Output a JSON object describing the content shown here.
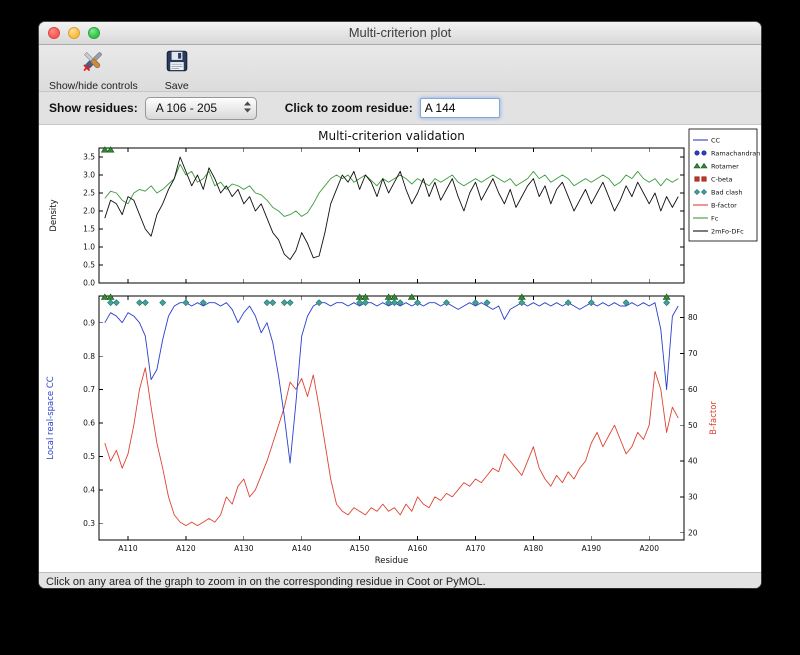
{
  "window": {
    "title": "Multi-criterion plot"
  },
  "toolbar": {
    "show_hide_label": "Show/hide controls",
    "save_label": "Save"
  },
  "controls": {
    "show_residues_label": "Show residues:",
    "residue_range_value": "A 106 - 205",
    "zoom_residue_label": "Click to zoom residue:",
    "zoom_residue_value": "A 144"
  },
  "statusbar": {
    "text": "Click on any area of the graph to zoom in on the corresponding residue in Coot or PyMOL."
  },
  "chart_data": {
    "type": "line",
    "title": "Multi-criterion validation",
    "xlabel": "Residue",
    "x_start": 106,
    "xlim": [
      105,
      206
    ],
    "x_tick_values": [
      110,
      120,
      130,
      140,
      150,
      160,
      170,
      180,
      190,
      200
    ],
    "x_tick_labels": [
      "A110",
      "A120",
      "A130",
      "A140",
      "A150",
      "A160",
      "A170",
      "A180",
      "A190",
      "A200"
    ],
    "top_plot": {
      "ylabel": "Density",
      "ylim": [
        0,
        3.75
      ],
      "yticks": [
        0.0,
        0.5,
        1.0,
        1.5,
        2.0,
        2.5,
        3.0,
        3.5
      ],
      "marker_y": 3.7,
      "rotamer_marker_x": [
        106,
        107
      ],
      "series": [
        {
          "name": "Fc",
          "color": "#3c9b3c",
          "values": [
            2.35,
            2.55,
            2.5,
            2.3,
            2.2,
            2.5,
            2.6,
            2.55,
            2.7,
            2.5,
            2.6,
            2.75,
            2.9,
            3.3,
            3.0,
            3.1,
            2.8,
            2.9,
            3.1,
            2.7,
            2.8,
            2.6,
            2.75,
            2.7,
            2.6,
            2.7,
            2.5,
            2.45,
            2.3,
            2.1,
            2.0,
            1.85,
            1.9,
            2.0,
            1.85,
            1.95,
            2.2,
            2.5,
            2.7,
            2.9,
            3.0,
            2.9,
            3.0,
            2.8,
            2.9,
            3.0,
            2.85,
            2.7,
            2.9,
            2.8,
            2.9,
            3.0,
            2.9,
            2.75,
            2.9,
            2.8,
            2.7,
            2.9,
            2.8,
            2.9,
            3.0,
            2.8,
            2.7,
            2.8,
            2.9,
            2.8,
            2.9,
            3.0,
            2.9,
            2.8,
            2.9,
            2.7,
            2.8,
            2.9,
            3.1,
            2.9,
            3.0,
            2.8,
            2.9,
            3.0,
            2.9,
            2.7,
            2.8,
            2.9,
            2.8,
            2.9,
            3.0,
            2.9,
            2.7,
            2.8,
            3.0,
            2.9,
            3.1,
            2.9,
            2.8,
            2.9,
            2.7,
            2.9,
            2.8,
            2.9
          ]
        },
        {
          "name": "2mFo-DFc",
          "color": "#111111",
          "values": [
            1.8,
            2.3,
            2.2,
            1.9,
            2.4,
            2.3,
            1.9,
            1.5,
            1.3,
            1.9,
            2.2,
            2.6,
            2.9,
            3.5,
            3.1,
            2.7,
            3.0,
            2.6,
            3.2,
            2.9,
            2.5,
            2.7,
            2.4,
            2.6,
            2.2,
            2.4,
            2.0,
            2.2,
            1.8,
            1.4,
            1.2,
            0.8,
            0.65,
            0.9,
            1.4,
            1.1,
            0.7,
            0.75,
            1.4,
            2.2,
            2.6,
            3.0,
            2.8,
            3.1,
            2.6,
            3.0,
            2.8,
            2.4,
            2.9,
            2.5,
            2.8,
            3.1,
            2.6,
            2.2,
            2.5,
            2.9,
            2.4,
            2.8,
            2.3,
            2.6,
            2.9,
            2.4,
            2.0,
            2.5,
            2.8,
            2.3,
            2.6,
            2.9,
            2.5,
            2.2,
            2.6,
            2.1,
            2.4,
            2.7,
            2.9,
            2.4,
            2.7,
            2.2,
            2.6,
            2.8,
            2.4,
            2.0,
            2.3,
            2.6,
            2.2,
            2.5,
            2.8,
            2.4,
            2.0,
            2.3,
            2.7,
            2.4,
            2.8,
            2.5,
            2.2,
            2.5,
            2.0,
            2.4,
            2.1,
            2.4
          ]
        }
      ]
    },
    "bottom_plot": {
      "ylabel_left": "Local real-space CC",
      "ylabel_left_color": "#2b3fcc",
      "ylabel_right": "B-factor",
      "ylabel_right_color": "#dd4433",
      "ylim_left": [
        0.25,
        0.98
      ],
      "yticks_left": [
        0.3,
        0.4,
        0.5,
        0.6,
        0.7,
        0.8,
        0.9
      ],
      "ylim_right": [
        18,
        86
      ],
      "yticks_right": [
        20,
        30,
        40,
        50,
        60,
        70,
        80
      ],
      "cc": {
        "name": "CC",
        "color": "#2b3fcc",
        "values": [
          0.9,
          0.93,
          0.92,
          0.9,
          0.93,
          0.92,
          0.9,
          0.86,
          0.73,
          0.76,
          0.85,
          0.92,
          0.95,
          0.96,
          0.96,
          0.95,
          0.96,
          0.95,
          0.96,
          0.96,
          0.95,
          0.96,
          0.94,
          0.9,
          0.93,
          0.95,
          0.92,
          0.87,
          0.9,
          0.84,
          0.74,
          0.62,
          0.48,
          0.66,
          0.86,
          0.92,
          0.95,
          0.96,
          0.96,
          0.95,
          0.96,
          0.96,
          0.95,
          0.96,
          0.95,
          0.96,
          0.96,
          0.95,
          0.96,
          0.95,
          0.96,
          0.95,
          0.96,
          0.95,
          0.96,
          0.95,
          0.96,
          0.96,
          0.95,
          0.96,
          0.95,
          0.94,
          0.95,
          0.96,
          0.95,
          0.96,
          0.95,
          0.94,
          0.95,
          0.91,
          0.94,
          0.95,
          0.96,
          0.95,
          0.96,
          0.95,
          0.96,
          0.95,
          0.96,
          0.95,
          0.96,
          0.95,
          0.94,
          0.95,
          0.96,
          0.95,
          0.96,
          0.95,
          0.96,
          0.95,
          0.95,
          0.96,
          0.95,
          0.96,
          0.95,
          0.96,
          0.88,
          0.7,
          0.92,
          0.95
        ]
      },
      "bfactor": {
        "name": "B-factor",
        "color": "#dd4433",
        "values": [
          45,
          40,
          43,
          38,
          42,
          50,
          60,
          66,
          55,
          45,
          38,
          30,
          25,
          23,
          22,
          23,
          22,
          23,
          24,
          23,
          25,
          30,
          28,
          33,
          35,
          30,
          32,
          36,
          40,
          45,
          50,
          55,
          62,
          60,
          63,
          58,
          64,
          55,
          45,
          35,
          28,
          26,
          25,
          27,
          26,
          25,
          27,
          26,
          28,
          26,
          27,
          25,
          28,
          26,
          30,
          28,
          27,
          30,
          29,
          31,
          30,
          32,
          34,
          33,
          35,
          34,
          36,
          38,
          37,
          42,
          40,
          38,
          36,
          40,
          44,
          38,
          35,
          33,
          36,
          34,
          37,
          35,
          38,
          40,
          45,
          48,
          44,
          47,
          50,
          46,
          42,
          44,
          48,
          46,
          50,
          65,
          60,
          48,
          55,
          52
        ]
      },
      "bad_clash_x": [
        107,
        108,
        112,
        113,
        116,
        120,
        123,
        134,
        135,
        137,
        138,
        143,
        150,
        151,
        155,
        156,
        157,
        160,
        165,
        170,
        172,
        178,
        186,
        190,
        196,
        203
      ],
      "bad_clash_y": 0.96,
      "bad_clash_color": "#44a09a",
      "bad_clash_edge": "#1f6f6a",
      "rotamer_x": [
        106,
        107,
        150,
        151,
        155,
        156,
        159,
        178,
        203
      ],
      "rotamer_y": 0.977,
      "rotamer_color": "#2e8b2e",
      "rotamer_edge": "#14511a"
    },
    "legend": [
      {
        "label": "CC",
        "type": "line",
        "color": "#2b3fcc"
      },
      {
        "label": "Ramachandran",
        "type": "circle",
        "color": "#2b3fcc",
        "edge": "#16207a"
      },
      {
        "label": "Rotamer",
        "type": "triangle",
        "color": "#2e8b2e",
        "edge": "#14511a"
      },
      {
        "label": "C-beta",
        "type": "square",
        "color": "#cc3322",
        "edge": "#70150c"
      },
      {
        "label": "Bad clash",
        "type": "diamond",
        "color": "#44a09a",
        "edge": "#1f6f6a"
      },
      {
        "label": "B-factor",
        "type": "line",
        "color": "#dd4433"
      },
      {
        "label": "Fc",
        "type": "line",
        "color": "#3c9b3c"
      },
      {
        "label": "2mFo-DFc",
        "type": "line",
        "color": "#111111"
      }
    ]
  }
}
